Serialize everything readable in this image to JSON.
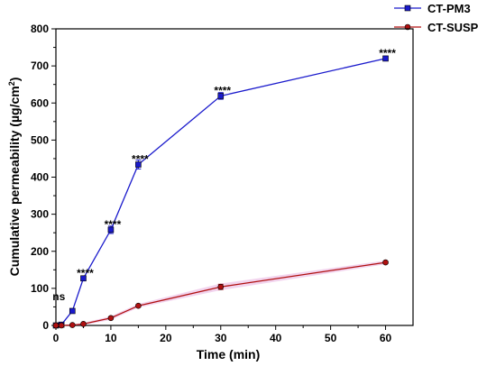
{
  "chart_data": {
    "type": "line",
    "title": "",
    "xlabel": "Time (min)",
    "ylabel": "Cumulative permeability (µg/cm²)",
    "ylabel_main": "Cumulative permeability (µg/cm",
    "ylabel_sup": "2",
    "ylabel_close": ")",
    "xlim": [
      0,
      65
    ],
    "ylim": [
      0,
      800
    ],
    "x_ticks": [
      0,
      10,
      20,
      30,
      40,
      50,
      60
    ],
    "y_ticks": [
      0,
      100,
      200,
      300,
      400,
      500,
      600,
      700,
      800
    ],
    "grid": false,
    "legend_position": "top-right",
    "series": [
      {
        "name": "CT-PM3",
        "color": "#1a1acc",
        "marker": "square",
        "x": [
          0,
          1,
          3,
          5,
          10,
          15,
          30,
          60
        ],
        "y": [
          0,
          2,
          39,
          127,
          258,
          434,
          619,
          720
        ],
        "err": [
          0,
          1,
          3,
          6,
          10,
          12,
          9,
          5
        ],
        "annotations": [
          "",
          "",
          "ns",
          "****",
          "****",
          "****",
          "****",
          "****"
        ]
      },
      {
        "name": "CT-SUSP",
        "color": "#b01010",
        "marker": "circle",
        "x": [
          0,
          1,
          3,
          5,
          10,
          15,
          30,
          60
        ],
        "y": [
          0,
          0,
          1,
          4,
          20,
          53,
          104,
          170
        ],
        "err": [
          0,
          0,
          0,
          1,
          3,
          3,
          7,
          3
        ]
      }
    ]
  }
}
